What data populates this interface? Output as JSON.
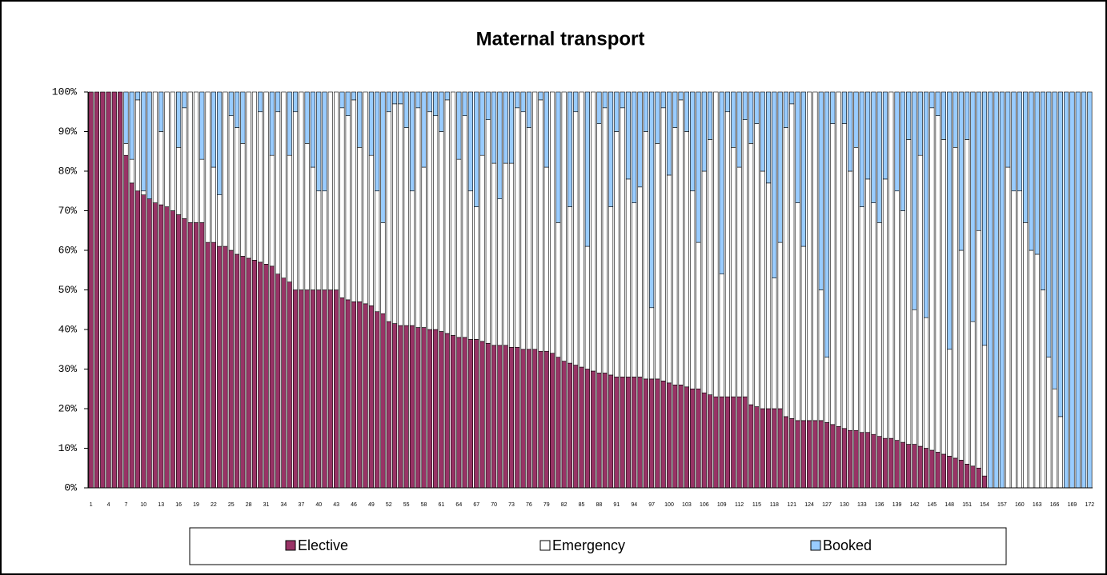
{
  "chart_data": {
    "type": "stacked_bar",
    "title": "Maternal transport",
    "categories": [
      "1",
      null,
      null,
      "4",
      null,
      null,
      "7",
      null,
      null,
      "10",
      null,
      null,
      "13",
      null,
      null,
      "16",
      null,
      null,
      "19",
      null,
      null,
      "22",
      null,
      null,
      "25",
      null,
      null,
      "28",
      null,
      null,
      "31",
      null,
      null,
      "34",
      null,
      null,
      "37",
      null,
      null,
      "40",
      null,
      null,
      "43",
      null,
      null,
      "46",
      null,
      null,
      "49",
      null,
      null,
      "52",
      null,
      null,
      "55",
      null,
      null,
      "58",
      null,
      null,
      "61",
      null,
      null,
      "64",
      null,
      null,
      "67",
      null,
      null,
      "70",
      null,
      null,
      "73",
      null,
      null,
      "76",
      null,
      null,
      "79",
      null,
      null,
      "82",
      null,
      null,
      "85",
      null,
      null,
      "88",
      null,
      null,
      "91",
      null,
      null,
      "94",
      null,
      null,
      "97",
      null,
      null,
      "100",
      null,
      null,
      "103",
      null,
      null,
      "106",
      null,
      null,
      "109",
      null,
      null,
      "112",
      null,
      null,
      "115",
      null,
      null,
      "118",
      null,
      null,
      "121",
      null,
      null,
      "124",
      null,
      null,
      "127",
      null,
      null,
      "130",
      null,
      null,
      "133",
      null,
      null,
      "136",
      null,
      null,
      "139",
      null,
      null,
      "142",
      null,
      null,
      "145",
      null,
      null,
      "148",
      null,
      null,
      "151",
      null,
      null,
      "154",
      null,
      null,
      "157",
      null,
      null,
      "160",
      null,
      null,
      "163",
      null,
      null,
      "166",
      null,
      null,
      "169",
      null,
      null,
      "172"
    ],
    "series": [
      {
        "name": "Elective",
        "color": "#993366",
        "values": [
          100,
          100,
          100,
          100,
          100,
          100,
          84,
          77,
          75,
          74,
          73,
          72,
          71.5,
          71,
          70,
          69,
          68,
          67,
          67,
          67,
          62,
          62,
          61,
          61,
          60,
          59,
          58.5,
          58,
          57.5,
          57,
          56.5,
          56,
          54,
          53,
          52,
          50,
          50,
          50,
          50,
          50,
          50,
          50,
          50,
          48,
          47.5,
          47,
          47,
          46.5,
          46,
          44.5,
          44,
          42,
          41.5,
          41,
          41,
          41,
          40.5,
          40.5,
          40,
          40,
          39.5,
          39,
          38.5,
          38,
          38,
          37.5,
          37.5,
          37,
          36.5,
          36,
          36,
          36,
          35.5,
          35.5,
          35,
          35,
          35,
          34.5,
          34.5,
          34,
          33,
          32,
          31.5,
          31,
          30.5,
          30,
          29.5,
          29,
          29,
          28.5,
          28,
          28,
          28,
          28,
          28,
          27.5,
          27.5,
          27.5,
          27,
          26.5,
          26,
          26,
          25.5,
          25,
          25,
          24,
          23.5,
          23,
          23,
          23,
          23,
          23,
          23,
          21,
          20.5,
          20,
          20,
          20,
          20,
          18,
          17.5,
          17,
          17,
          17,
          17,
          17,
          16.5,
          16,
          15.5,
          15,
          14.5,
          14.5,
          14,
          14,
          13.5,
          13,
          12.5,
          12.5,
          12,
          11.5,
          11,
          11,
          10.5,
          10,
          9.5,
          9,
          8.5,
          8,
          7.5,
          7,
          6,
          5.5,
          5,
          3,
          0,
          0,
          0,
          0,
          0,
          0,
          0,
          0,
          0,
          0,
          0,
          0,
          0,
          0,
          0,
          0,
          0,
          0
        ]
      },
      {
        "name": "Emergency",
        "color": "#ffffff",
        "values": [
          0,
          0,
          0,
          0,
          0,
          0,
          3,
          6,
          23,
          1,
          0,
          28,
          18.5,
          29,
          30,
          17,
          28,
          33,
          33,
          16,
          38,
          19,
          13,
          39,
          34,
          32,
          28.5,
          42,
          42.5,
          38,
          43.5,
          28,
          41,
          47,
          32,
          45,
          50,
          37,
          31,
          25,
          25,
          50,
          50,
          48,
          46.5,
          51,
          39,
          53.5,
          38,
          30.5,
          23,
          53,
          55.5,
          56,
          50,
          34,
          55.5,
          40.5,
          55,
          54,
          50.5,
          59,
          61.5,
          45,
          56,
          37.5,
          33.5,
          47,
          56.5,
          46,
          37,
          46,
          46.5,
          60.5,
          60,
          56,
          65,
          63.5,
          46.5,
          66,
          34,
          68,
          39.5,
          64,
          69.5,
          31,
          70.5,
          63,
          67,
          42.5,
          62,
          68,
          50,
          44,
          48,
          62.5,
          18,
          59.5,
          69,
          52.5,
          65,
          72,
          64.5,
          50,
          37,
          56,
          64.5,
          77,
          31,
          72,
          63,
          58,
          70,
          66,
          71.5,
          60,
          57,
          33,
          42,
          73,
          79.5,
          55,
          44,
          83,
          83,
          33,
          16.5,
          76,
          84.5,
          77,
          65.5,
          71.5,
          57,
          64,
          58.5,
          54,
          65.5,
          87.5,
          63,
          58.5,
          77,
          34,
          73.5,
          33,
          86.5,
          85,
          79.5,
          27,
          78.5,
          53,
          82,
          36.5,
          60,
          33,
          0,
          0,
          0,
          81,
          75,
          75,
          67,
          60,
          59,
          50,
          33,
          25,
          18,
          0,
          0,
          0,
          0,
          0
        ]
      },
      {
        "name": "Booked",
        "color": "#99ccff",
        "values": [
          0,
          0,
          0,
          0,
          0,
          0,
          13,
          17,
          2,
          25,
          27,
          0,
          10,
          0,
          0,
          14,
          4,
          0,
          0,
          17,
          0,
          19,
          26,
          0,
          6,
          9,
          13,
          0,
          0,
          5,
          0,
          16,
          5,
          0,
          16,
          5,
          0,
          13,
          19,
          25,
          25,
          0,
          0,
          4,
          6,
          2,
          14,
          0,
          16,
          25,
          33,
          5,
          3,
          3,
          9,
          25,
          4,
          19,
          5,
          6,
          10,
          2,
          0,
          17,
          6,
          25,
          29,
          16,
          7,
          18,
          27,
          18,
          18,
          4,
          5,
          9,
          0,
          2,
          19,
          0,
          33,
          0,
          29,
          5,
          0,
          39,
          0,
          8,
          4,
          29,
          10,
          4,
          22,
          28,
          24,
          10,
          54.5,
          13,
          4,
          21,
          9,
          2,
          10,
          25,
          38,
          20,
          12,
          0,
          46,
          5,
          14,
          19,
          7,
          13,
          8,
          20,
          23,
          47,
          38,
          9,
          3,
          28,
          39,
          0,
          0,
          50,
          67,
          8,
          0,
          8,
          20,
          14,
          29,
          22,
          28,
          33,
          22,
          0,
          25,
          30,
          12,
          55,
          16,
          57,
          4,
          6,
          12,
          65,
          14,
          40,
          12,
          58,
          35,
          64,
          100,
          100,
          100,
          19,
          25,
          25,
          33,
          40,
          41,
          50,
          67,
          75,
          82,
          100,
          100,
          100,
          100,
          100
        ]
      }
    ],
    "ylim": [
      0,
      100
    ],
    "yticks": [
      {
        "value": 0,
        "label": "0%"
      },
      {
        "value": 10,
        "label": "10%"
      },
      {
        "value": 20,
        "label": "20%"
      },
      {
        "value": 30,
        "label": "30%"
      },
      {
        "value": 40,
        "label": "40%"
      },
      {
        "value": 50,
        "label": "50%"
      },
      {
        "value": 60,
        "label": "60%"
      },
      {
        "value": 70,
        "label": "70%"
      },
      {
        "value": 80,
        "label": "80%"
      },
      {
        "value": 90,
        "label": "90%"
      },
      {
        "value": 100,
        "label": "100%"
      }
    ],
    "legend": "bottom"
  }
}
